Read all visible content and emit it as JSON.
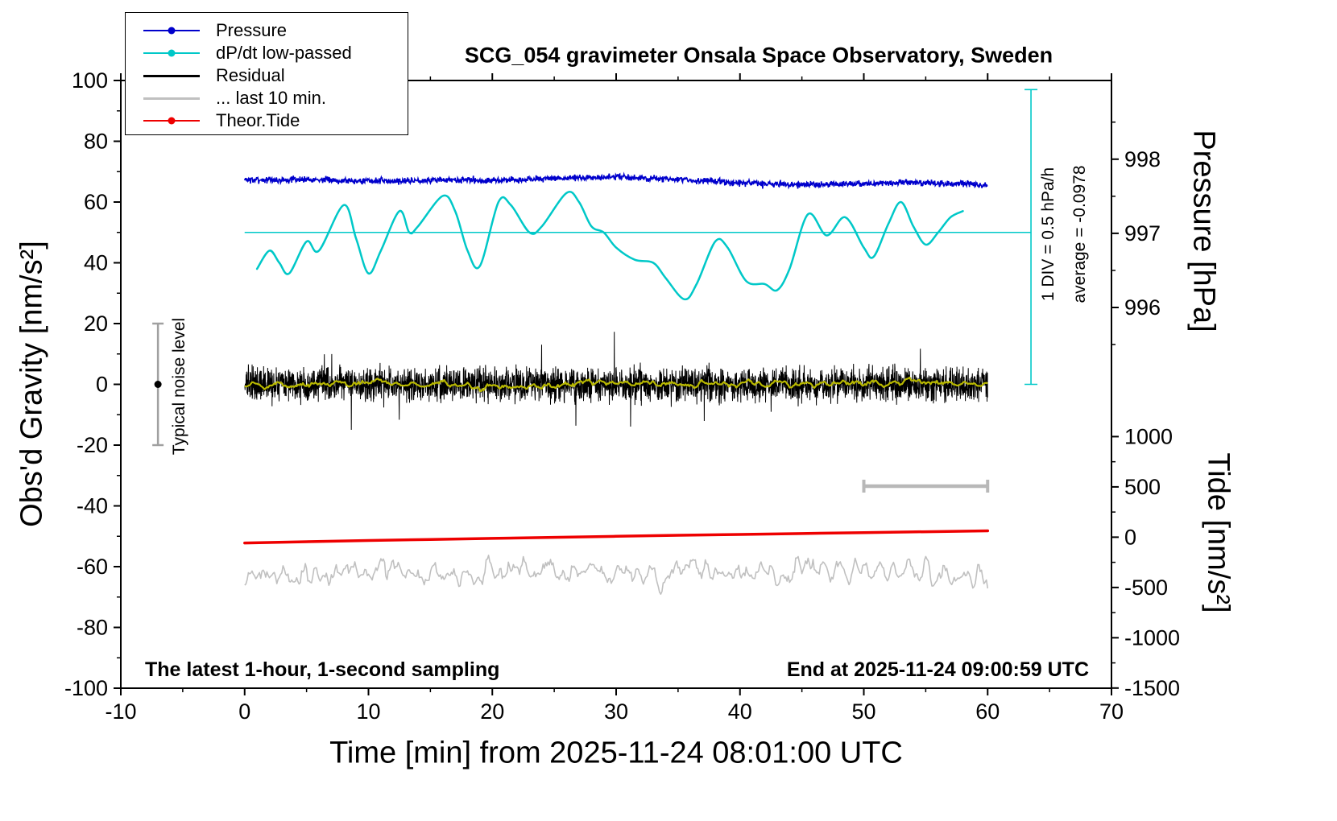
{
  "title": "SCG_054 gravimeter Onsala Space Observatory, Sweden",
  "xlabel": "Time [min] from 2025-11-24 08:01:00 UTC",
  "ylabel": "Obs'd Gravity [nm/s²]",
  "right_top_label": "Pressure [hPa]",
  "right_bottom_label": "Tide [nm/s²]",
  "footer_left": "The latest 1-hour, 1-second sampling",
  "footer_right": "End at 2025-11-24 09:00:59 UTC",
  "annotations": {
    "div_scale": "1 DIV = 0.5 hPa/h",
    "average": "average = -0.0978",
    "noise_level": "Typical noise level"
  },
  "legend": [
    {
      "label": "Pressure",
      "color": "#0000CC",
      "marker": true,
      "lw": 2.5
    },
    {
      "label": "dP/dt low-passed",
      "color": "#00C8C8",
      "marker": true,
      "lw": 2.5
    },
    {
      "label": "Residual",
      "color": "#000000",
      "marker": false,
      "lw": 3
    },
    {
      "label": "... last 10 min.",
      "color": "#C0C0C0",
      "marker": false,
      "lw": 3
    },
    {
      "label": "Theor.Tide",
      "color": "#EE0000",
      "marker": true,
      "lw": 2.5
    }
  ],
  "chart_data": {
    "type": "line",
    "title": "SCG_054 gravimeter Onsala Space Observatory, Sweden",
    "xlabel": "Time [min] from 2025-11-24 08:01:00 UTC",
    "ylabel": "Obs'd Gravity [nm/s²]",
    "xlim": [
      -10,
      70
    ],
    "ylim": [
      -100,
      100
    ],
    "x_ticks": [
      -10,
      0,
      10,
      20,
      30,
      40,
      50,
      60,
      70
    ],
    "y_ticks": [
      -100,
      -80,
      -60,
      -40,
      -20,
      0,
      20,
      40,
      60,
      80,
      100
    ],
    "pressure_axis": {
      "label": "Pressure [hPa]",
      "ticks": [
        996,
        997,
        998
      ],
      "minor_ticks": [
        995.5,
        996.5,
        997.5,
        998.5
      ],
      "gravity_at_997": 49.7,
      "gravity_per_hPa": 24.4
    },
    "tide_axis": {
      "label": "Tide [nm/s²]",
      "ticks": [
        1000,
        500,
        0,
        -500,
        -1000,
        -1500
      ],
      "minor_ticks": [
        -1250,
        -750,
        -250,
        250,
        750
      ],
      "gravity_at_0": -50.3,
      "gravity_per_unit": 0.0331
    },
    "series": [
      {
        "name": "pressure",
        "color": "#0000CC",
        "width": 1.6,
        "render": "noisy",
        "noise": 0.5,
        "seed": 7,
        "points_per_min": 30,
        "spike_factor": 1.8,
        "baseline": [
          [
            0,
            67.4
          ],
          [
            3,
            67.2
          ],
          [
            5,
            67.5
          ],
          [
            8,
            67.1
          ],
          [
            12,
            66.9
          ],
          [
            16,
            67.3
          ],
          [
            20,
            67.1
          ],
          [
            24,
            67.6
          ],
          [
            28,
            68.1
          ],
          [
            30,
            68.3
          ],
          [
            33,
            67.7
          ],
          [
            36,
            67.2
          ],
          [
            40,
            66.3
          ],
          [
            43,
            65.9
          ],
          [
            46,
            65.7
          ],
          [
            50,
            66.0
          ],
          [
            53,
            66.3
          ],
          [
            55,
            66.4
          ],
          [
            57,
            65.9
          ],
          [
            58.5,
            66.2
          ],
          [
            60,
            65.4
          ]
        ]
      },
      {
        "name": "dpdt_lowpassed",
        "color": "#00C8C8",
        "width": 2.5,
        "render": "smooth",
        "points": [
          [
            1,
            38
          ],
          [
            2,
            44
          ],
          [
            2.8,
            40
          ],
          [
            3.6,
            36.5
          ],
          [
            5,
            47
          ],
          [
            6,
            44
          ],
          [
            8,
            59
          ],
          [
            9,
            48
          ],
          [
            10,
            36.5
          ],
          [
            11,
            44
          ],
          [
            12.5,
            57
          ],
          [
            13.3,
            50
          ],
          [
            14,
            52
          ],
          [
            16,
            62
          ],
          [
            17,
            57
          ],
          [
            18,
            44
          ],
          [
            19,
            39
          ],
          [
            20.5,
            60
          ],
          [
            21.5,
            59
          ],
          [
            23,
            50
          ],
          [
            24,
            52
          ],
          [
            26,
            63
          ],
          [
            27,
            60
          ],
          [
            28,
            52
          ],
          [
            29,
            50
          ],
          [
            30,
            45
          ],
          [
            31.5,
            41
          ],
          [
            33,
            40
          ],
          [
            34,
            35
          ],
          [
            35.5,
            28
          ],
          [
            36.5,
            33
          ],
          [
            38,
            47
          ],
          [
            39,
            45
          ],
          [
            40.5,
            34
          ],
          [
            42,
            33
          ],
          [
            43,
            31
          ],
          [
            44,
            38
          ],
          [
            45.5,
            56
          ],
          [
            47,
            49
          ],
          [
            48.5,
            55
          ],
          [
            50,
            45
          ],
          [
            50.8,
            42
          ],
          [
            52,
            53
          ],
          [
            53,
            60
          ],
          [
            54,
            52
          ],
          [
            55,
            46
          ],
          [
            56,
            50
          ],
          [
            57,
            55
          ],
          [
            58,
            57
          ]
        ]
      },
      {
        "name": "residual",
        "color": "#000000",
        "width": 1,
        "render": "noisy",
        "noise": 2.6,
        "seed": 13,
        "points_per_min": 60,
        "spike_factor": 2.6,
        "baseline": [
          [
            0,
            0
          ],
          [
            60,
            0
          ]
        ]
      },
      {
        "name": "residual_lowpassed",
        "color": "#B8B800",
        "width": 2.2,
        "render": "smoothnoise",
        "noise": 0.8,
        "seed": 5,
        "baseline": [
          [
            0,
            0
          ],
          [
            10,
            0.5
          ],
          [
            19,
            -0.8
          ],
          [
            30,
            0.3
          ],
          [
            40,
            0
          ],
          [
            50,
            0.3
          ],
          [
            55,
            0.8
          ],
          [
            60,
            0
          ]
        ]
      },
      {
        "name": "theor_tide",
        "color": "#EE0000",
        "width": 3.5,
        "render": "smooth",
        "points": [
          [
            0,
            -52.2
          ],
          [
            10,
            -51.4
          ],
          [
            20,
            -50.7
          ],
          [
            30,
            -50.0
          ],
          [
            40,
            -49.4
          ],
          [
            50,
            -48.8
          ],
          [
            60,
            -48.2
          ]
        ]
      },
      {
        "name": "last_10_min",
        "color": "#C0C0C0",
        "width": 1.6,
        "render": "smoothnoise",
        "noise": 2.7,
        "seed": 21,
        "baseline": [
          [
            0,
            -62
          ],
          [
            60,
            -62
          ]
        ]
      }
    ],
    "markers": {
      "cyan_hline": {
        "y": 50,
        "x0": 0,
        "x1": 63.5,
        "color": "#00C8C8"
      },
      "cyan_vbar": {
        "x": 63.5,
        "y0": 0,
        "y1": 97,
        "color": "#00C8C8"
      },
      "gray_scalebar": {
        "x0": 50,
        "x1": 60,
        "y": -33.5,
        "color": "#B8B8B8"
      },
      "noise_errorbar": {
        "x": -7,
        "y0": -20,
        "y1": 20,
        "dot_y": 0,
        "color": "#A0A0A0"
      }
    },
    "legend_position": "top-left",
    "grid": false
  }
}
